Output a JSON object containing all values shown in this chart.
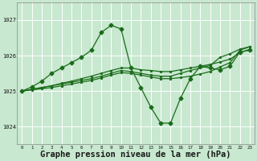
{
  "bg_color": "#c8e8d0",
  "grid_color": "#ffffff",
  "line_color": "#1a6b1a",
  "xlabel": "Graphe pression niveau de la mer (hPa)",
  "xlabel_fontsize": 7.5,
  "ylim": [
    1023.5,
    1027.5
  ],
  "yticks": [
    1024,
    1025,
    1026,
    1027
  ],
  "xticks": [
    0,
    1,
    2,
    3,
    4,
    5,
    6,
    7,
    8,
    9,
    10,
    11,
    12,
    13,
    14,
    15,
    16,
    17,
    18,
    19,
    20,
    21,
    22,
    23
  ],
  "main_y": [
    1025.0,
    1025.12,
    1025.28,
    1025.5,
    1025.65,
    1025.8,
    1025.95,
    1026.15,
    1026.65,
    1026.85,
    1026.75,
    1025.65,
    1025.1,
    1024.55,
    1024.1,
    1024.1,
    1024.8,
    1025.35,
    1025.7,
    1025.65,
    1025.6,
    1025.7,
    1026.1,
    1026.15
  ],
  "line2_y": [
    1025.0,
    1025.05,
    1025.1,
    1025.15,
    1025.22,
    1025.28,
    1025.35,
    1025.42,
    1025.5,
    1025.58,
    1025.65,
    1025.65,
    1025.6,
    1025.58,
    1025.55,
    1025.55,
    1025.6,
    1025.65,
    1025.7,
    1025.75,
    1025.82,
    1025.9,
    1026.08,
    1026.18
  ],
  "line3_y": [
    1025.0,
    1025.05,
    1025.1,
    1025.15,
    1025.2,
    1025.25,
    1025.3,
    1025.35,
    1025.42,
    1025.5,
    1025.58,
    1025.55,
    1025.5,
    1025.45,
    1025.42,
    1025.42,
    1025.5,
    1025.58,
    1025.65,
    1025.72,
    1025.95,
    1026.05,
    1026.18,
    1026.25
  ],
  "line4_y": [
    1025.0,
    1025.03,
    1025.07,
    1025.1,
    1025.15,
    1025.2,
    1025.25,
    1025.3,
    1025.37,
    1025.45,
    1025.52,
    1025.5,
    1025.45,
    1025.4,
    1025.35,
    1025.35,
    1025.38,
    1025.42,
    1025.48,
    1025.55,
    1025.68,
    1025.8,
    1026.15,
    1026.25
  ]
}
